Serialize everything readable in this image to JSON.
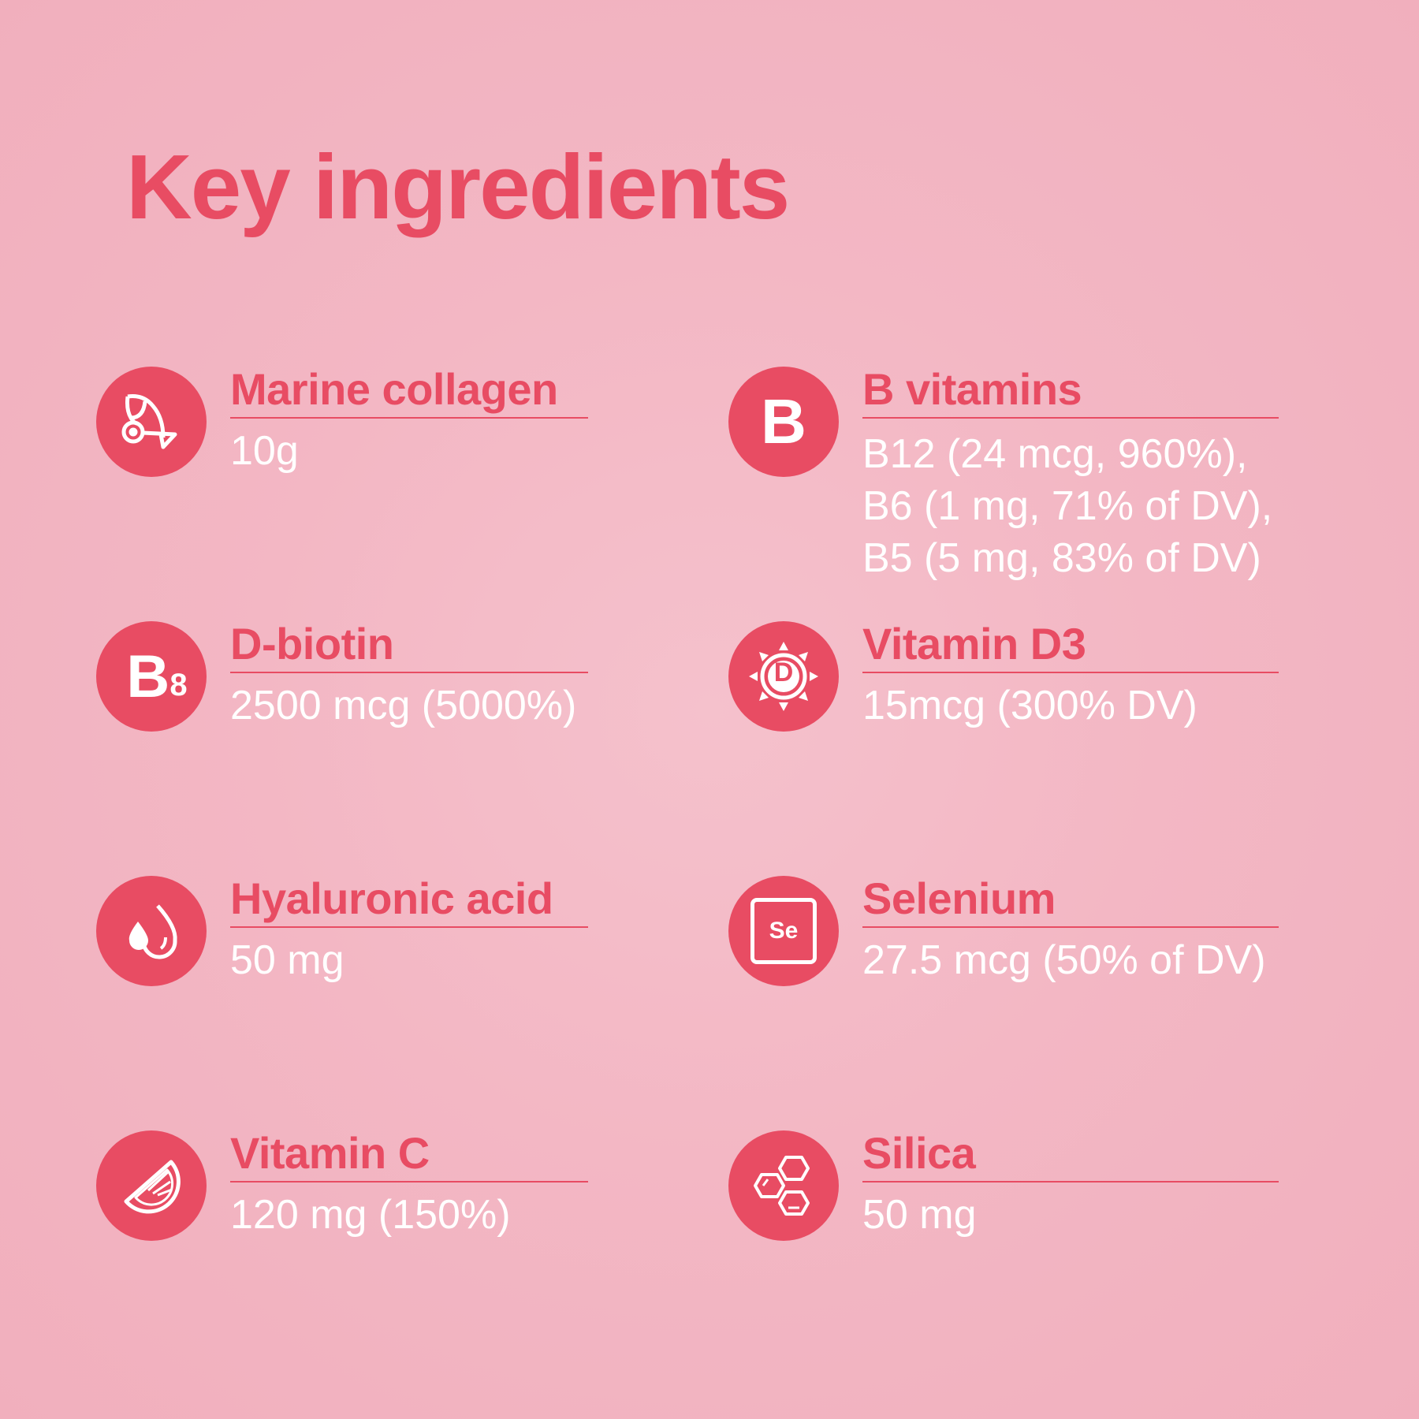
{
  "title": "Key ingredients",
  "colors": {
    "accent": "#e84c63",
    "background": "#f3b7c4",
    "text_light": "#ffffff"
  },
  "ingredients": [
    {
      "name": "Marine collagen",
      "value": "10g",
      "icon": "fish-collagen-icon"
    },
    {
      "name": "B vitamins",
      "value_lines": [
        "B12 (24 mcg, 960%),",
        "B6 (1 mg, 71% of DV),",
        "B5 (5 mg, 83% of DV)"
      ],
      "icon": "letter-b-icon",
      "icon_text": "B"
    },
    {
      "name": "D-biotin",
      "value": "2500 mcg (5000%)",
      "icon": "b8-icon",
      "icon_text": "B",
      "icon_sub": "8"
    },
    {
      "name": "Vitamin D3",
      "value": "15mcg (300% DV)",
      "icon": "sun-d-icon",
      "icon_text": "D"
    },
    {
      "name": "Hyaluronic acid",
      "value": "50 mg",
      "icon": "water-drops-icon"
    },
    {
      "name": "Selenium",
      "value": "27.5 mcg (50% of DV)",
      "icon": "element-se-icon",
      "icon_text": "Se"
    },
    {
      "name": "Vitamin C",
      "value": "120 mg (150%)",
      "icon": "citrus-slice-icon"
    },
    {
      "name": "Silica",
      "value": "50 mg",
      "icon": "hexagons-icon"
    }
  ]
}
